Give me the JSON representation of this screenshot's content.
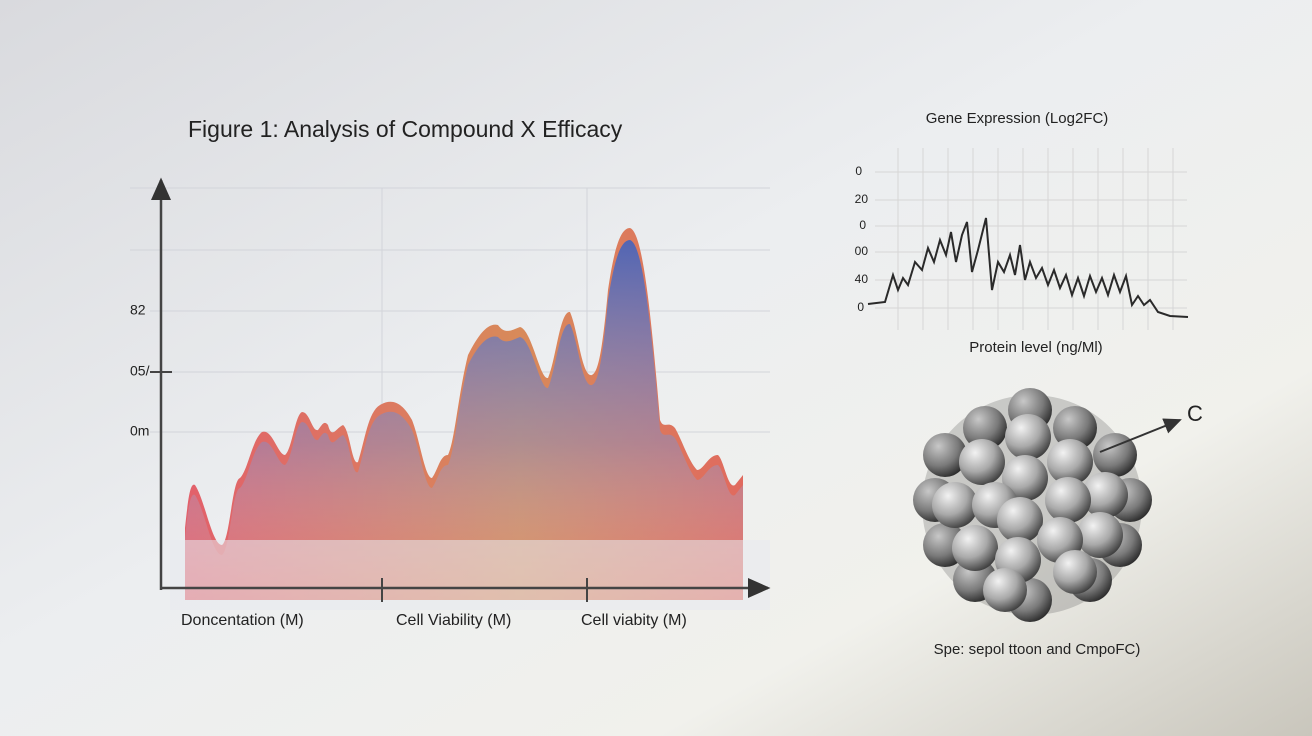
{
  "main_figure": {
    "title": "Figure 1: Analysis of Compound X Efficacy",
    "y_labels": [
      "82",
      "05/",
      "0m"
    ],
    "x_labels": [
      "Doncentation (M)",
      "Cell Viability (M)",
      "Cell viabity (M)"
    ]
  },
  "inset_chart": {
    "title": "Gene Expression (Log2FC)",
    "y_labels": [
      "0",
      "20",
      "0",
      "00",
      "40",
      "0"
    ],
    "x_label": "Protein level (ng/Ml)"
  },
  "particle": {
    "label": "C",
    "caption": "Spe: sepol ttoon and CmpoFC)"
  }
}
